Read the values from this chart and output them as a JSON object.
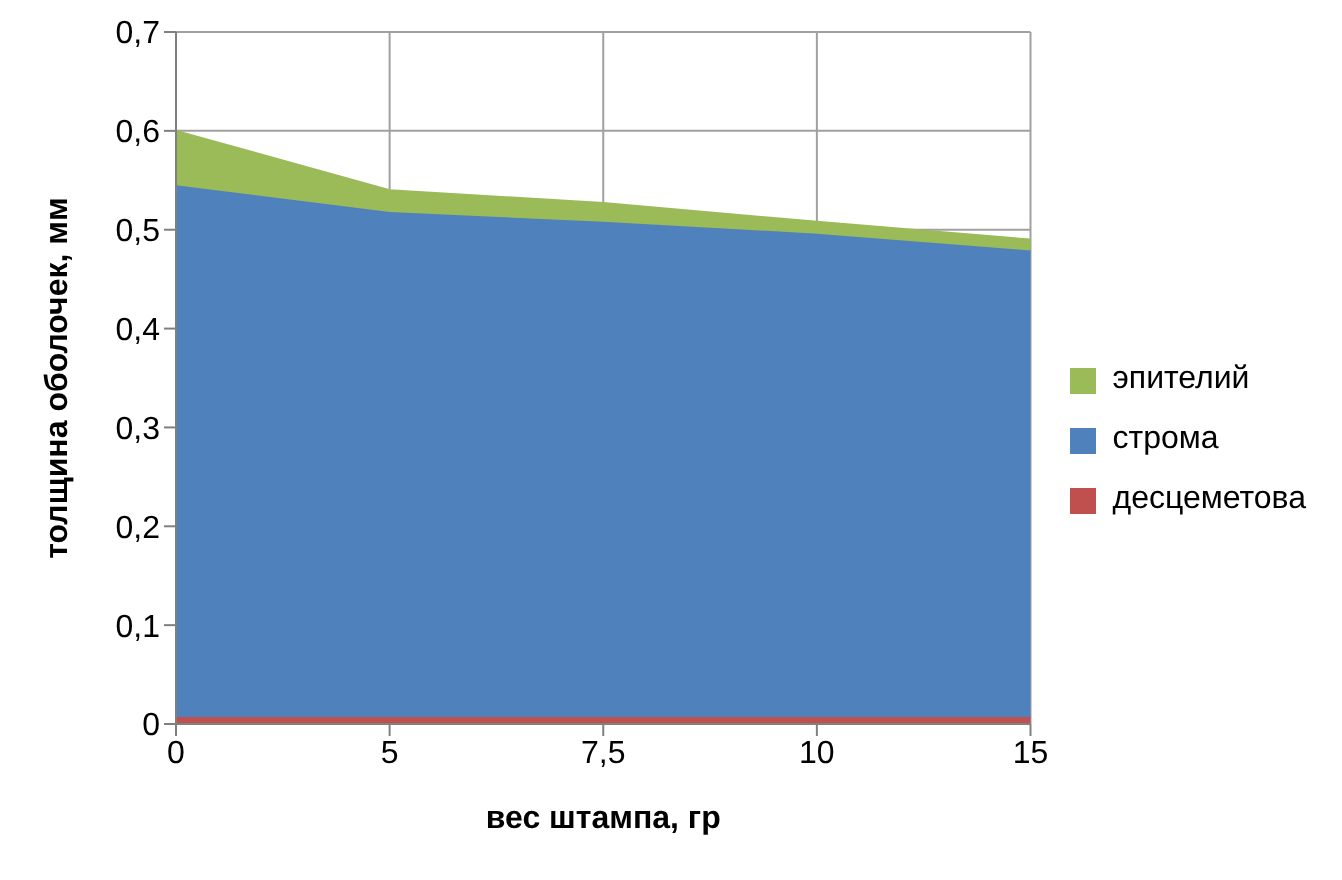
{
  "chart_data": {
    "type": "area",
    "stacked": true,
    "xlabel": "вес штампа, гр",
    "ylabel": "толщина оболочек, мм",
    "categories": [
      "0",
      "5",
      "7,5",
      "10",
      "15"
    ],
    "series": [
      {
        "name": "десцеметова",
        "color": "#c0504d",
        "values": [
          0.007,
          0.007,
          0.007,
          0.007,
          0.007
        ]
      },
      {
        "name": "строма",
        "color": "#4f81bd",
        "values": [
          0.538,
          0.511,
          0.501,
          0.489,
          0.472
        ]
      },
      {
        "name": "эпителий",
        "color": "#9bbb59",
        "values": [
          0.055,
          0.022,
          0.019,
          0.012,
          0.011
        ]
      }
    ],
    "ylim": [
      0,
      0.7
    ],
    "yticks": [
      {
        "value": 0,
        "label": "0"
      },
      {
        "value": 0.1,
        "label": "0,1"
      },
      {
        "value": 0.2,
        "label": "0,2"
      },
      {
        "value": 0.3,
        "label": "0,3"
      },
      {
        "value": 0.4,
        "label": "0,4"
      },
      {
        "value": 0.5,
        "label": "0,5"
      },
      {
        "value": 0.6,
        "label": "0,6"
      },
      {
        "value": 0.7,
        "label": "0,7"
      }
    ],
    "grid": true,
    "legend": "right"
  }
}
